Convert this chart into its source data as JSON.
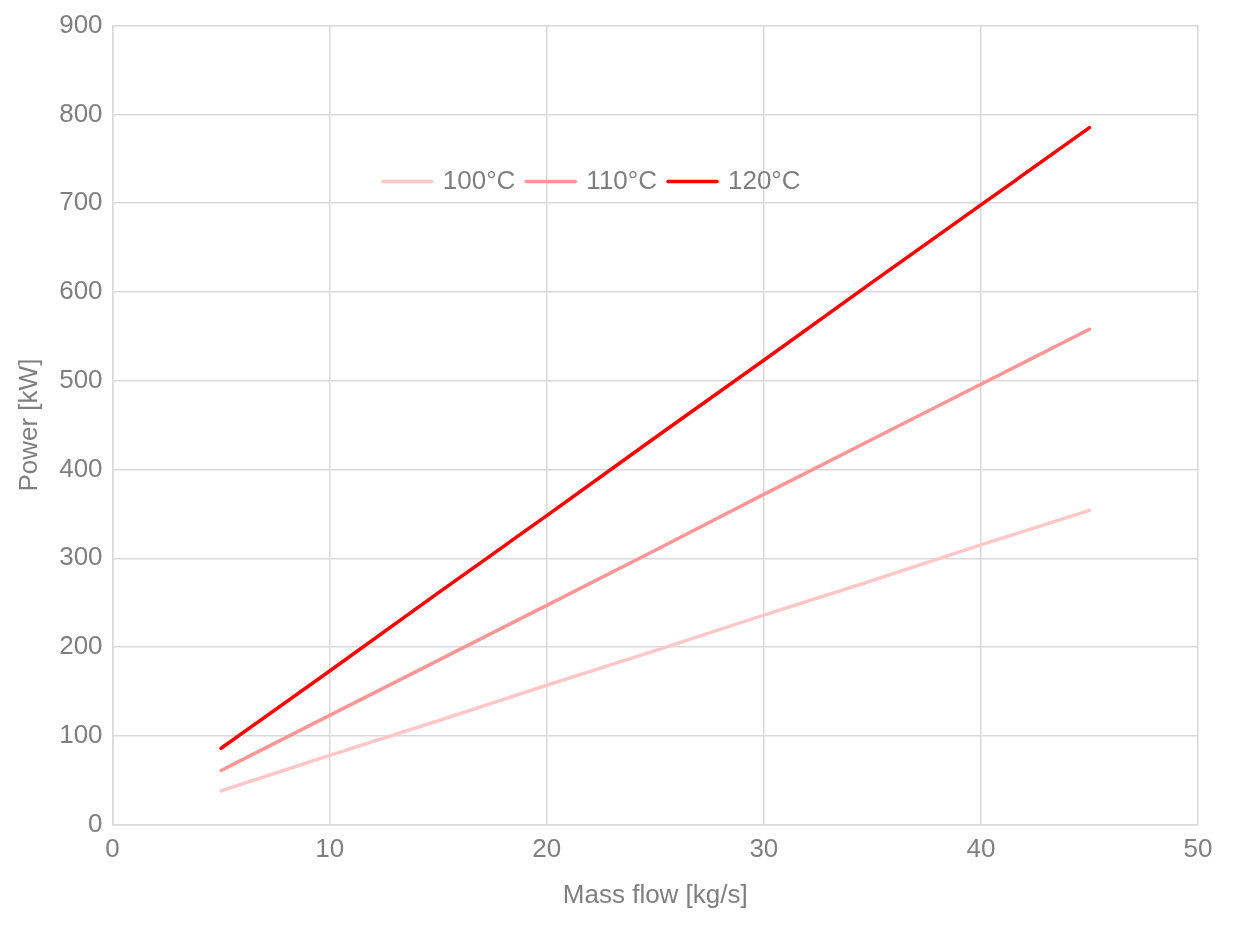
{
  "chart_data": {
    "type": "line",
    "xlabel": "Mass flow [kg/s]",
    "ylabel": "Power [kW]",
    "xlim": [
      0,
      50
    ],
    "xticks": [
      0,
      10,
      20,
      30,
      40,
      50
    ],
    "ylim": [
      0,
      900
    ],
    "yticks": [
      0,
      100,
      200,
      300,
      400,
      500,
      600,
      700,
      800,
      900
    ],
    "grid": true,
    "legend": "top",
    "marker": "none",
    "line_style": "solid",
    "series": [
      {
        "name": "100°C",
        "color": "#ffc7c7",
        "x": [
          5,
          10,
          15,
          20,
          25,
          30,
          35,
          40,
          45
        ],
        "values": [
          38,
          78,
          117,
          157,
          196,
          236,
          275,
          315,
          354
        ]
      },
      {
        "name": "110°C",
        "color": "#ff9696",
        "x": [
          5,
          10,
          15,
          20,
          25,
          30,
          35,
          40,
          45
        ],
        "values": [
          61,
          123,
          185,
          247,
          309,
          372,
          434,
          496,
          558
        ]
      },
      {
        "name": "120°C",
        "color": "#ff0000",
        "x": [
          5,
          10,
          15,
          20,
          25,
          30,
          35,
          40,
          45
        ],
        "values": [
          86,
          173,
          261,
          348,
          436,
          523,
          611,
          698,
          785
        ]
      }
    ]
  }
}
